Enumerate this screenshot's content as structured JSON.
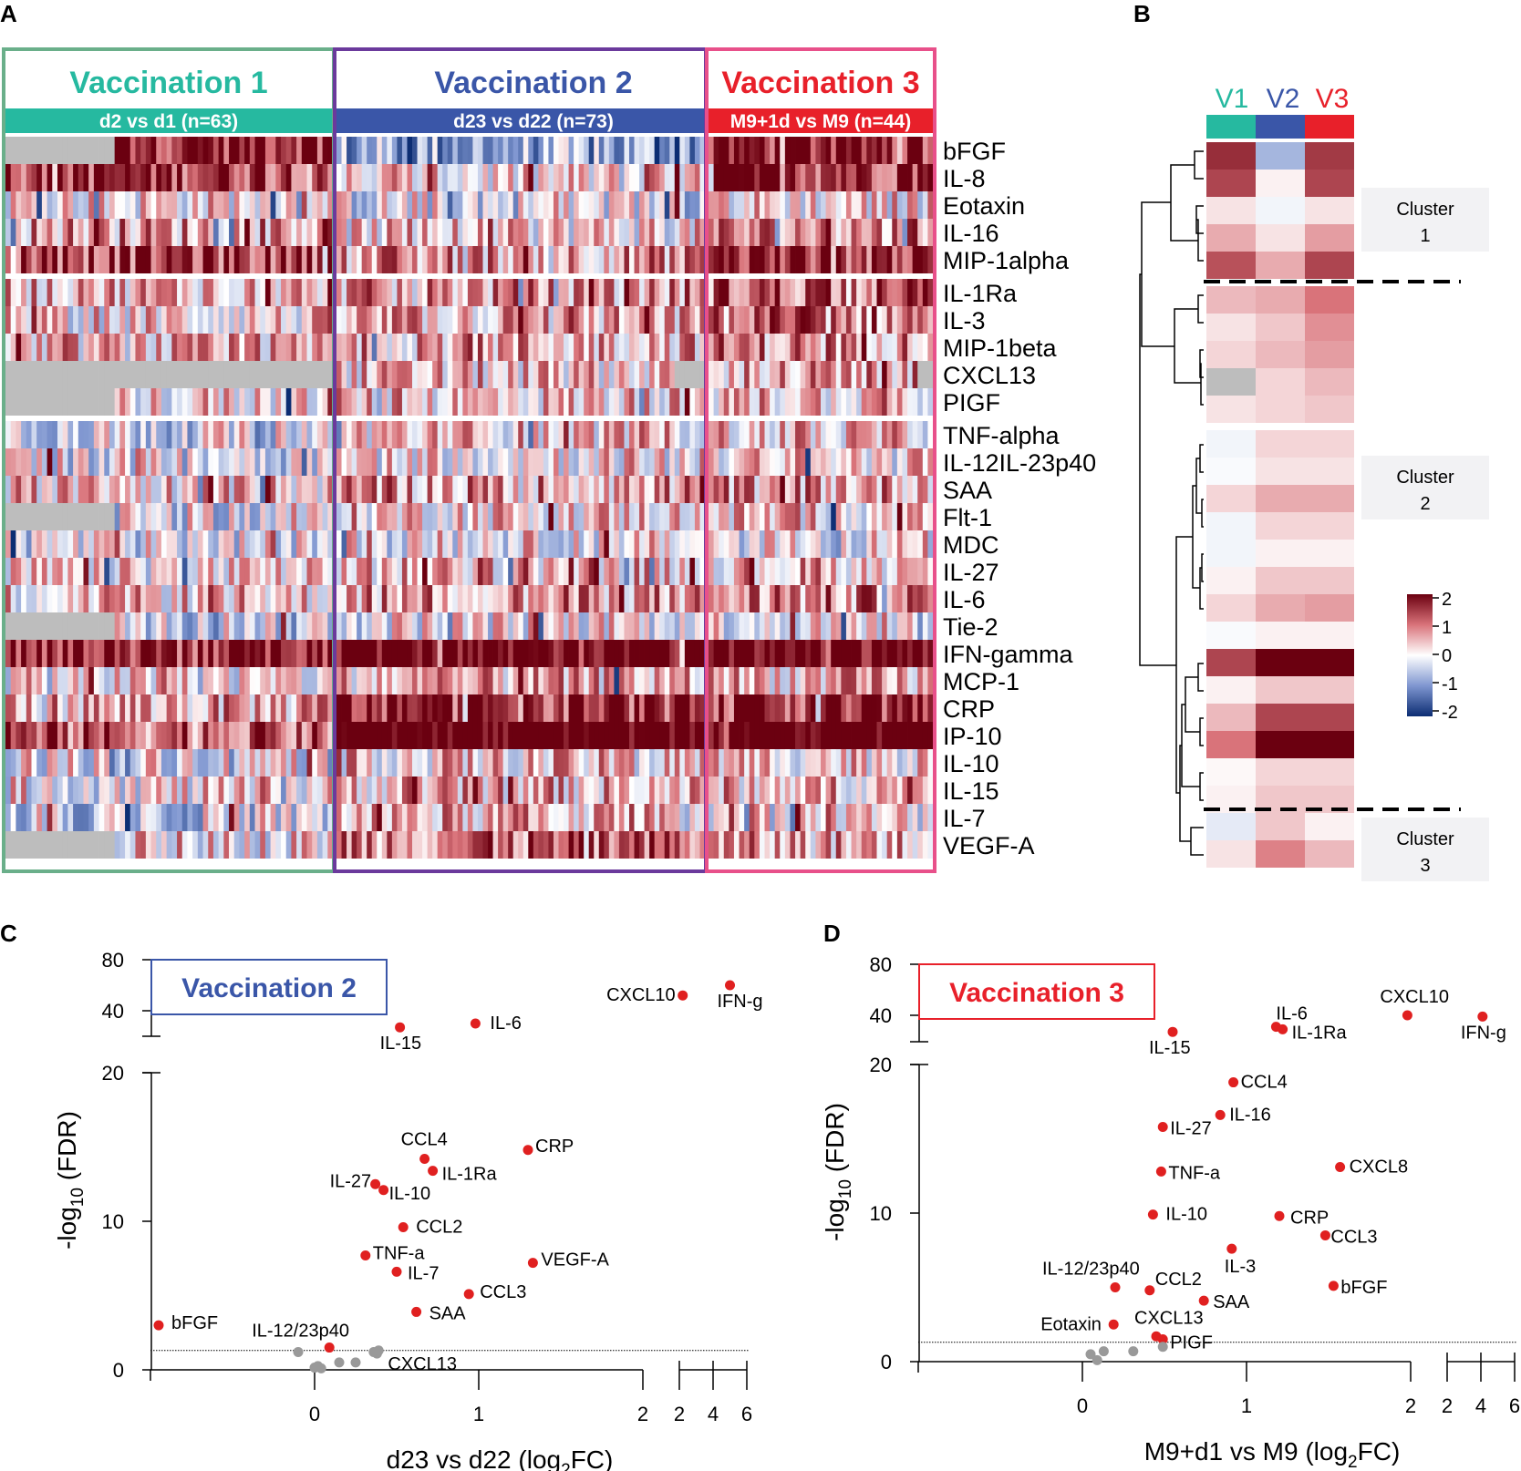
{
  "panels": {
    "a": "A",
    "b": "B",
    "c": "C",
    "d": "D"
  },
  "colors": {
    "v1": "#26b9a0",
    "v2": "#3a56a8",
    "v3": "#e8202a",
    "frame1": "#6aaf8a",
    "frame2": "#6b3a9c",
    "frame3": "#e8508a",
    "sig": "#e02020",
    "nonsig": "#999999",
    "cluster_bg": "#f2f2f4",
    "na": "#bdbdbd"
  },
  "heatmap": {
    "groups": [
      {
        "title": "Vaccination 1",
        "subtitle": "d2 vs d1 (n=63)"
      },
      {
        "title": "Vaccination 2",
        "subtitle": "d23 vs d22 (n=73)"
      },
      {
        "title": "Vaccination 3",
        "subtitle": "M9+1d vs M9 (n=44)"
      }
    ],
    "genes": [
      "bFGF",
      "IL-8",
      "Eotaxin",
      "IL-16",
      "MIP-1alpha",
      "IL-1Ra",
      "IL-3",
      "MIP-1beta",
      "CXCL13",
      "PIGF",
      "TNF-alpha",
      "IL-12IL-23p40",
      "SAA",
      "Flt-1",
      "MDC",
      "IL-27",
      "IL-6",
      "Tie-2",
      "IFN-gamma",
      "MCP-1",
      "CRP",
      "IP-10",
      "IL-10",
      "IL-15",
      "IL-7",
      "VEGF-A"
    ],
    "row_blocks": [
      5,
      5,
      16
    ]
  },
  "mean_heatmap": {
    "columns": [
      "V1",
      "V2",
      "V3"
    ],
    "clusters": [
      {
        "label_line1": "Cluster",
        "label_line2": "1"
      },
      {
        "label_line1": "Cluster",
        "label_line2": "2"
      },
      {
        "label_line1": "Cluster",
        "label_line2": "3"
      }
    ],
    "legend_ticks": [
      "2",
      "1",
      "0",
      "-1",
      "-2"
    ],
    "values": [
      [
        1.6,
        -0.7,
        1.5
      ],
      [
        1.4,
        0.1,
        1.4
      ],
      [
        0.2,
        -0.1,
        0.2
      ],
      [
        0.6,
        0.2,
        0.7
      ],
      [
        1.3,
        0.6,
        1.4
      ],
      [
        0.5,
        0.6,
        1.0
      ],
      [
        0.2,
        0.4,
        0.8
      ],
      [
        0.3,
        0.5,
        0.7
      ],
      [
        null,
        0.3,
        0.5
      ],
      [
        0.2,
        0.3,
        0.4
      ],
      [
        -0.1,
        0.3,
        0.3
      ],
      [
        -0.05,
        0.2,
        0.2
      ],
      [
        0.3,
        0.6,
        0.6
      ],
      [
        -0.1,
        0.3,
        0.3
      ],
      [
        -0.1,
        0.1,
        0.1
      ],
      [
        0.1,
        0.4,
        0.4
      ],
      [
        0.3,
        0.6,
        0.7
      ],
      [
        -0.05,
        0.1,
        0.1
      ],
      [
        1.4,
        2.0,
        2.0
      ],
      [
        0.1,
        0.4,
        0.4
      ],
      [
        0.5,
        1.4,
        1.4
      ],
      [
        1.0,
        2.2,
        2.2
      ],
      [
        0.05,
        0.3,
        0.3
      ],
      [
        0.1,
        0.4,
        0.4
      ],
      [
        -0.2,
        0.4,
        0.1
      ],
      [
        0.2,
        0.9,
        0.5
      ]
    ]
  },
  "chart_data": [
    {
      "type": "scatter",
      "panel": "C",
      "inset_label": "Vaccination 2",
      "xlabel": "d23 vs d22 (log",
      "xlabel_sub": "2",
      "xlabel_end": "FC)",
      "ylabel_prefix": "-log",
      "ylabel_sub": "10",
      "ylabel_suffix": " (FDR)",
      "x_ticks_main": [
        "0",
        "1",
        "2"
      ],
      "x_ticks_break": [
        "2",
        "4",
        "6"
      ],
      "y_ticks_main": [
        "0",
        "10",
        "20"
      ],
      "y_ticks_break": [
        "40",
        "80"
      ],
      "significance_threshold_neglog10": 1.3,
      "points": [
        {
          "label": "CXCL10",
          "x": 2.2,
          "y": 52,
          "sig": true
        },
        {
          "label": "IFN-g",
          "x": 5.0,
          "y": 60,
          "sig": true
        },
        {
          "label": "IL-6",
          "x": 0.98,
          "y": 30,
          "sig": true
        },
        {
          "label": "IL-15",
          "x": 0.52,
          "y": 27,
          "sig": true
        },
        {
          "label": "CCL4",
          "x": 0.67,
          "y": 14.2,
          "sig": true
        },
        {
          "label": "CRP",
          "x": 1.3,
          "y": 14.8,
          "sig": true
        },
        {
          "label": "IL-1Ra",
          "x": 0.72,
          "y": 13.4,
          "sig": true
        },
        {
          "label": "IL-27",
          "x": 0.37,
          "y": 12.5,
          "sig": true
        },
        {
          "label": "IL-10",
          "x": 0.42,
          "y": 12.1,
          "sig": true
        },
        {
          "label": "CCL2",
          "x": 0.54,
          "y": 9.6,
          "sig": true
        },
        {
          "label": "TNF-a",
          "x": 0.31,
          "y": 7.7,
          "sig": true
        },
        {
          "label": "IL-7",
          "x": 0.5,
          "y": 6.6,
          "sig": true
        },
        {
          "label": "VEGF-A",
          "x": 1.33,
          "y": 7.2,
          "sig": true
        },
        {
          "label": "CCL3",
          "x": 0.94,
          "y": 5.1,
          "sig": true
        },
        {
          "label": "SAA",
          "x": 0.62,
          "y": 3.9,
          "sig": true
        },
        {
          "label": "bFGF",
          "x": -0.95,
          "y": 3.0,
          "sig": true
        },
        {
          "label": "IL-12/23p40",
          "x": 0.09,
          "y": 1.5,
          "sig": true
        },
        {
          "label": "CXCL13",
          "x": 0.38,
          "y": 1.1,
          "sig": false
        },
        {
          "label": "",
          "x": -0.1,
          "y": 1.2,
          "sig": false
        },
        {
          "label": "",
          "x": 0.0,
          "y": 0.15,
          "sig": false
        },
        {
          "label": "",
          "x": 0.02,
          "y": 0.25,
          "sig": false
        },
        {
          "label": "",
          "x": 0.04,
          "y": 0.1,
          "sig": false
        },
        {
          "label": "",
          "x": 0.15,
          "y": 0.5,
          "sig": false
        },
        {
          "label": "",
          "x": 0.25,
          "y": 0.5,
          "sig": false
        },
        {
          "label": "",
          "x": 0.36,
          "y": 1.2,
          "sig": false
        },
        {
          "label": "",
          "x": 0.39,
          "y": 1.3,
          "sig": false
        }
      ]
    },
    {
      "type": "scatter",
      "panel": "D",
      "inset_label": "Vaccination 3",
      "xlabel": "M9+d1 vs M9 (log",
      "xlabel_sub": "2",
      "xlabel_end": "FC)",
      "ylabel_prefix": "-log",
      "ylabel_sub": "10",
      "ylabel_suffix": " (FDR)",
      "x_ticks_main": [
        "0",
        "1",
        "2"
      ],
      "x_ticks_break": [
        "2",
        "4",
        "6"
      ],
      "y_ticks_main": [
        "0",
        "10",
        "20"
      ],
      "y_ticks_break": [
        "40",
        "80"
      ],
      "significance_threshold_neglog10": 1.3,
      "points": [
        {
          "label": "CXCL10",
          "x": 1.98,
          "y": 40,
          "sig": true
        },
        {
          "label": "IFN-g",
          "x": 4.1,
          "y": 39,
          "sig": true
        },
        {
          "label": "IL-6",
          "x": 1.18,
          "y": 31,
          "sig": true
        },
        {
          "label": "IL-1Ra",
          "x": 1.22,
          "y": 29,
          "sig": true
        },
        {
          "label": "IL-15",
          "x": 0.55,
          "y": 27,
          "sig": true
        },
        {
          "label": "CCL4",
          "x": 0.92,
          "y": 18.8,
          "sig": true
        },
        {
          "label": "IL-16",
          "x": 0.84,
          "y": 16.6,
          "sig": true
        },
        {
          "label": "IL-27",
          "x": 0.49,
          "y": 15.8,
          "sig": true
        },
        {
          "label": "CXCL8",
          "x": 1.57,
          "y": 13.1,
          "sig": true
        },
        {
          "label": "TNF-a",
          "x": 0.48,
          "y": 12.8,
          "sig": true
        },
        {
          "label": "IL-10",
          "x": 0.43,
          "y": 9.9,
          "sig": true
        },
        {
          "label": "CRP",
          "x": 1.2,
          "y": 9.8,
          "sig": true
        },
        {
          "label": "CCL3",
          "x": 1.48,
          "y": 8.5,
          "sig": true
        },
        {
          "label": "IL-3",
          "x": 0.91,
          "y": 7.6,
          "sig": true
        },
        {
          "label": "bFGF",
          "x": 1.53,
          "y": 5.1,
          "sig": true
        },
        {
          "label": "IL-12/23p40",
          "x": 0.2,
          "y": 5.0,
          "sig": true
        },
        {
          "label": "CCL2",
          "x": 0.41,
          "y": 4.8,
          "sig": true
        },
        {
          "label": "SAA",
          "x": 0.74,
          "y": 4.1,
          "sig": true
        },
        {
          "label": "Eotaxin",
          "x": 0.19,
          "y": 2.5,
          "sig": true
        },
        {
          "label": "CXCL13",
          "x": 0.45,
          "y": 1.7,
          "sig": true
        },
        {
          "label": "PIGF",
          "x": 0.49,
          "y": 1.5,
          "sig": true
        },
        {
          "label": "",
          "x": 0.05,
          "y": 0.5,
          "sig": false
        },
        {
          "label": "",
          "x": 0.09,
          "y": 0.1,
          "sig": false
        },
        {
          "label": "",
          "x": 0.13,
          "y": 0.7,
          "sig": false
        },
        {
          "label": "",
          "x": 0.31,
          "y": 0.7,
          "sig": false
        },
        {
          "label": "",
          "x": 0.49,
          "y": 1.0,
          "sig": false
        }
      ]
    }
  ]
}
